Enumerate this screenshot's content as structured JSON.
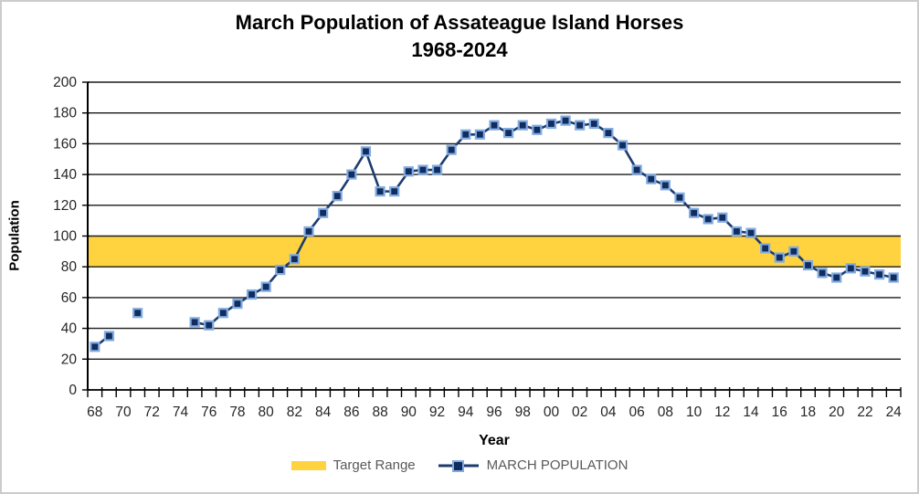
{
  "title": {
    "line1": "March Population of Assateague Island Horses",
    "line2": "1968-2024"
  },
  "axes": {
    "y_title": "Population",
    "x_title": "Year",
    "y_ticks": [
      0,
      20,
      40,
      60,
      80,
      100,
      120,
      140,
      160,
      180,
      200
    ],
    "x_tick_labels": [
      "68",
      "70",
      "72",
      "74",
      "76",
      "78",
      "80",
      "82",
      "84",
      "86",
      "88",
      "90",
      "92",
      "94",
      "96",
      "98",
      "00",
      "02",
      "04",
      "06",
      "08",
      "10",
      "12",
      "14",
      "16",
      "18",
      "20",
      "22",
      "24"
    ]
  },
  "legend": [
    {
      "label": "Target Range",
      "type": "band"
    },
    {
      "label": "MARCH POPULATION",
      "type": "line-marker"
    }
  ],
  "colors": {
    "target_range": "#FFD23F",
    "series_line": "#1C3B6E",
    "marker_fill": "#112C5F",
    "marker_border": "#82ABE0",
    "gridline": "#1A1A1A",
    "axis_line": "#000000",
    "tick_label": "#262626",
    "legend_text": "#595959"
  },
  "chart_data": {
    "type": "line",
    "title": "March Population of Assateague Island Horses 1968-2024",
    "xlabel": "Year",
    "ylabel": "Population",
    "ylim": [
      0,
      200
    ],
    "grid": "horizontal",
    "legend_position": "bottom",
    "target_range": {
      "label": "Target Range",
      "min": 80,
      "max": 100
    },
    "x": [
      1968,
      1969,
      1970,
      1971,
      1972,
      1973,
      1974,
      1975,
      1976,
      1977,
      1978,
      1979,
      1980,
      1981,
      1982,
      1983,
      1984,
      1985,
      1986,
      1987,
      1988,
      1989,
      1990,
      1991,
      1992,
      1993,
      1994,
      1995,
      1996,
      1997,
      1998,
      1999,
      2000,
      2001,
      2002,
      2003,
      2004,
      2005,
      2006,
      2007,
      2008,
      2009,
      2010,
      2011,
      2012,
      2013,
      2014,
      2015,
      2016,
      2017,
      2018,
      2019,
      2020,
      2021,
      2022,
      2023,
      2024
    ],
    "series": [
      {
        "name": "MARCH POPULATION",
        "values": [
          28,
          35,
          null,
          50,
          null,
          null,
          null,
          44,
          42,
          50,
          56,
          62,
          67,
          78,
          85,
          103,
          115,
          126,
          140,
          155,
          129,
          129,
          142,
          143,
          143,
          156,
          166,
          166,
          172,
          167,
          172,
          169,
          173,
          175,
          172,
          173,
          167,
          159,
          143,
          137,
          133,
          125,
          115,
          111,
          112,
          103,
          102,
          92,
          86,
          90,
          81,
          76,
          73,
          79,
          77,
          75,
          73
        ]
      }
    ]
  }
}
